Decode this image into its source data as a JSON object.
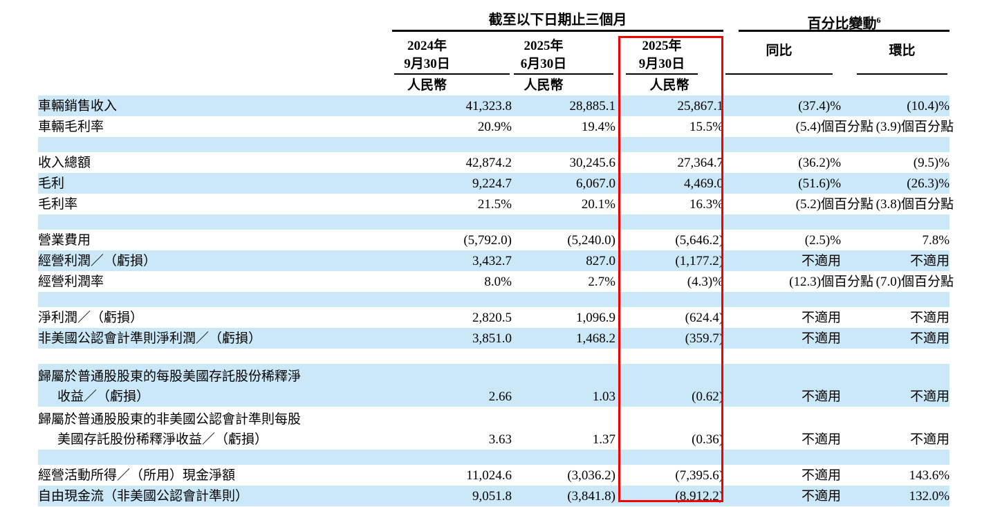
{
  "table": {
    "group_headers": {
      "period": "截至以下日期止三個月",
      "change": "百分比變動",
      "change_footnote": "6"
    },
    "columns": {
      "c1": {
        "line1": "2024年",
        "line2": "9月30日",
        "currency": "人民幣"
      },
      "c2": {
        "line1": "2025年",
        "line2": "6月30日",
        "currency": "人民幣"
      },
      "c3": {
        "line1": "2025年",
        "line2": "9月30日",
        "currency": "人民幣"
      },
      "yoy": {
        "label": "同比"
      },
      "qoq": {
        "label": "環比"
      }
    },
    "colors": {
      "row_highlight": "#cbe8f8",
      "red_box": "#f20000"
    },
    "rows": [
      {
        "type": "data",
        "shade": "blue",
        "label": "車輛銷售收入",
        "v1": "41,323.8",
        "v2": "28,885.1",
        "v3": "25,867.1",
        "yoy": "(37.4)%",
        "qoq": "(10.4)%"
      },
      {
        "type": "data",
        "shade": "white",
        "label": "車輛毛利率",
        "v1": "20.9%",
        "v2": "19.4%",
        "v3": "15.5%",
        "yoy": "(5.4)個百分點",
        "qoq": "(3.9)個百分點",
        "pp": true
      },
      {
        "type": "spacer",
        "shade": "blue"
      },
      {
        "type": "data",
        "shade": "white",
        "label": "收入總額",
        "v1": "42,874.2",
        "v2": "30,245.6",
        "v3": "27,364.7",
        "yoy": "(36.2)%",
        "qoq": "(9.5)%"
      },
      {
        "type": "data",
        "shade": "blue",
        "label": "毛利",
        "v1": "9,224.7",
        "v2": "6,067.0",
        "v3": "4,469.0",
        "yoy": "(51.6)%",
        "qoq": "(26.3)%"
      },
      {
        "type": "data",
        "shade": "white",
        "label": "毛利率",
        "v1": "21.5%",
        "v2": "20.1%",
        "v3": "16.3%",
        "yoy": "(5.2)個百分點",
        "qoq": "(3.8)個百分點",
        "pp": true
      },
      {
        "type": "spacer",
        "shade": "blue"
      },
      {
        "type": "data",
        "shade": "white",
        "label": "營業費用",
        "v1": "(5,792.0)",
        "v2": "(5,240.0)",
        "v3": "(5,646.2)",
        "yoy": "(2.5)%",
        "qoq": "7.8%"
      },
      {
        "type": "data",
        "shade": "blue",
        "label": "經營利潤／（虧損）",
        "v1": "3,432.7",
        "v2": "827.0",
        "v3": "(1,177.2)",
        "yoy": "不適用",
        "qoq": "不適用"
      },
      {
        "type": "data",
        "shade": "white",
        "label": "經營利潤率",
        "v1": "8.0%",
        "v2": "2.7%",
        "v3": "(4.3)%",
        "yoy": "(12.3)個百分點",
        "qoq": "(7.0)個百分點",
        "pp": true
      },
      {
        "type": "spacer",
        "shade": "blue"
      },
      {
        "type": "data",
        "shade": "white",
        "label": "淨利潤／（虧損）",
        "v1": "2,820.5",
        "v2": "1,096.9",
        "v3": "(624.4)",
        "yoy": "不適用",
        "qoq": "不適用"
      },
      {
        "type": "data",
        "shade": "blue",
        "label": "非美國公認會計準則淨利潤／（虧損）",
        "v1": "3,851.0",
        "v2": "1,468.2",
        "v3": "(359.7)",
        "yoy": "不適用",
        "qoq": "不適用"
      },
      {
        "type": "spacer",
        "shade": "white"
      },
      {
        "type": "data2",
        "shade": "blue",
        "label_line1": "歸屬於普通股股東的每股美國存託股份稀釋淨",
        "label_line2": "收益／（虧損）",
        "v1": "2.66",
        "v2": "1.03",
        "v3": "(0.62)",
        "yoy": "不適用",
        "qoq": "不適用"
      },
      {
        "type": "data2",
        "shade": "white",
        "label_line1": "歸屬於普通股股東的非美國公認會計準則每股",
        "label_line2": "美國存託股份稀釋淨收益／（虧損）",
        "v1": "3.63",
        "v2": "1.37",
        "v3": "(0.36)",
        "yoy": "不適用",
        "qoq": "不適用"
      },
      {
        "type": "spacer",
        "shade": "blue"
      },
      {
        "type": "data",
        "shade": "white",
        "label": "經營活動所得／（所用）現金淨額",
        "v1": "11,024.6",
        "v2": "(3,036.2)",
        "v3": "(7,395.6)",
        "yoy": "不適用",
        "qoq": "143.6%"
      },
      {
        "type": "data",
        "shade": "blue",
        "label": "自由現金流（非美國公認會計準則）",
        "v1": "9,051.8",
        "v2": "(3,841.8)",
        "v3": "(8,912.2)",
        "yoy": "不適用",
        "qoq": "132.0%"
      }
    ]
  }
}
